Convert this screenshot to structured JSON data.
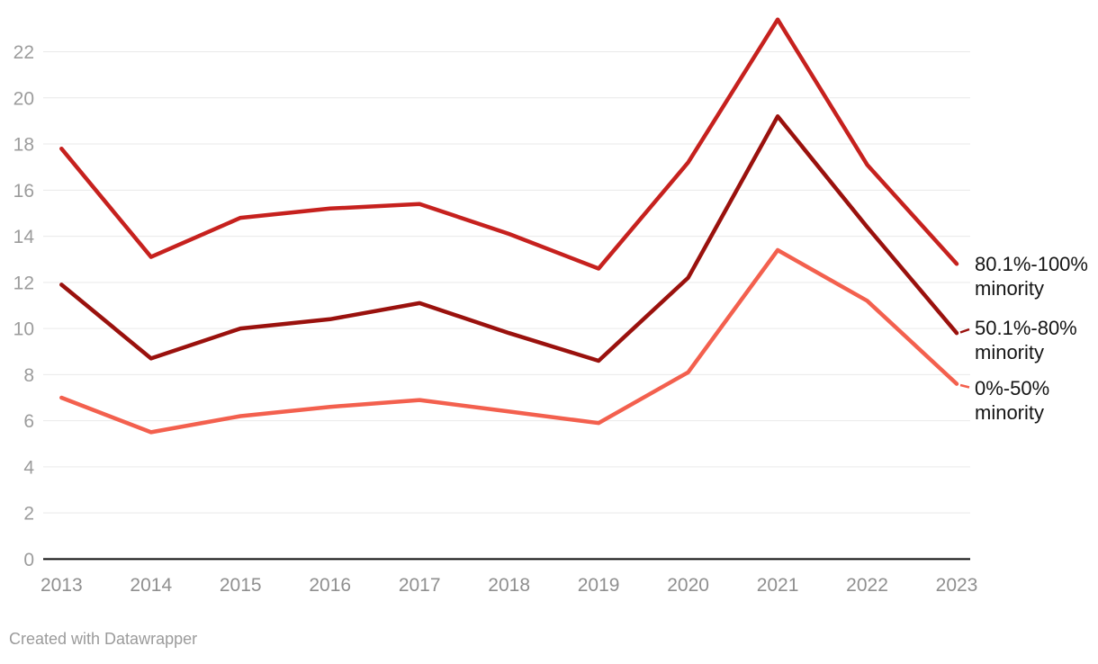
{
  "chart_data": {
    "type": "line",
    "title": "",
    "xlabel": "",
    "ylabel": "",
    "categories": [
      "2013",
      "2014",
      "2015",
      "2016",
      "2017",
      "2018",
      "2019",
      "2020",
      "2021",
      "2022",
      "2023"
    ],
    "y_ticks": [
      0,
      2,
      4,
      6,
      8,
      10,
      12,
      14,
      16,
      18,
      20,
      22
    ],
    "ylim": [
      0,
      23.5
    ],
    "grid": true,
    "legend_position": "right-direct-labels",
    "series": [
      {
        "id": "80-1-100-minority",
        "name": "80.1%-100% minority",
        "label_lines": [
          "80.1%-100%",
          "minority"
        ],
        "color": "#c6211e",
        "values": [
          17.8,
          13.1,
          14.8,
          15.2,
          15.4,
          14.1,
          12.6,
          17.2,
          23.4,
          17.1,
          12.8
        ]
      },
      {
        "id": "50-1-80-minority",
        "name": "50.1%-80% minority",
        "label_lines": [
          "50.1%-80%",
          "minority"
        ],
        "color": "#9a110d",
        "values": [
          11.9,
          8.7,
          10.0,
          10.4,
          11.1,
          9.8,
          8.6,
          12.2,
          19.2,
          14.4,
          9.8
        ]
      },
      {
        "id": "0-50-minority",
        "name": "0%-50% minority",
        "label_lines": [
          "0%-50%",
          "minority"
        ],
        "color": "#f3604e",
        "values": [
          7.0,
          5.5,
          6.2,
          6.6,
          6.9,
          6.4,
          5.9,
          8.1,
          13.4,
          11.2,
          7.6
        ]
      }
    ]
  },
  "footer": {
    "credit": "Created with Datawrapper"
  }
}
